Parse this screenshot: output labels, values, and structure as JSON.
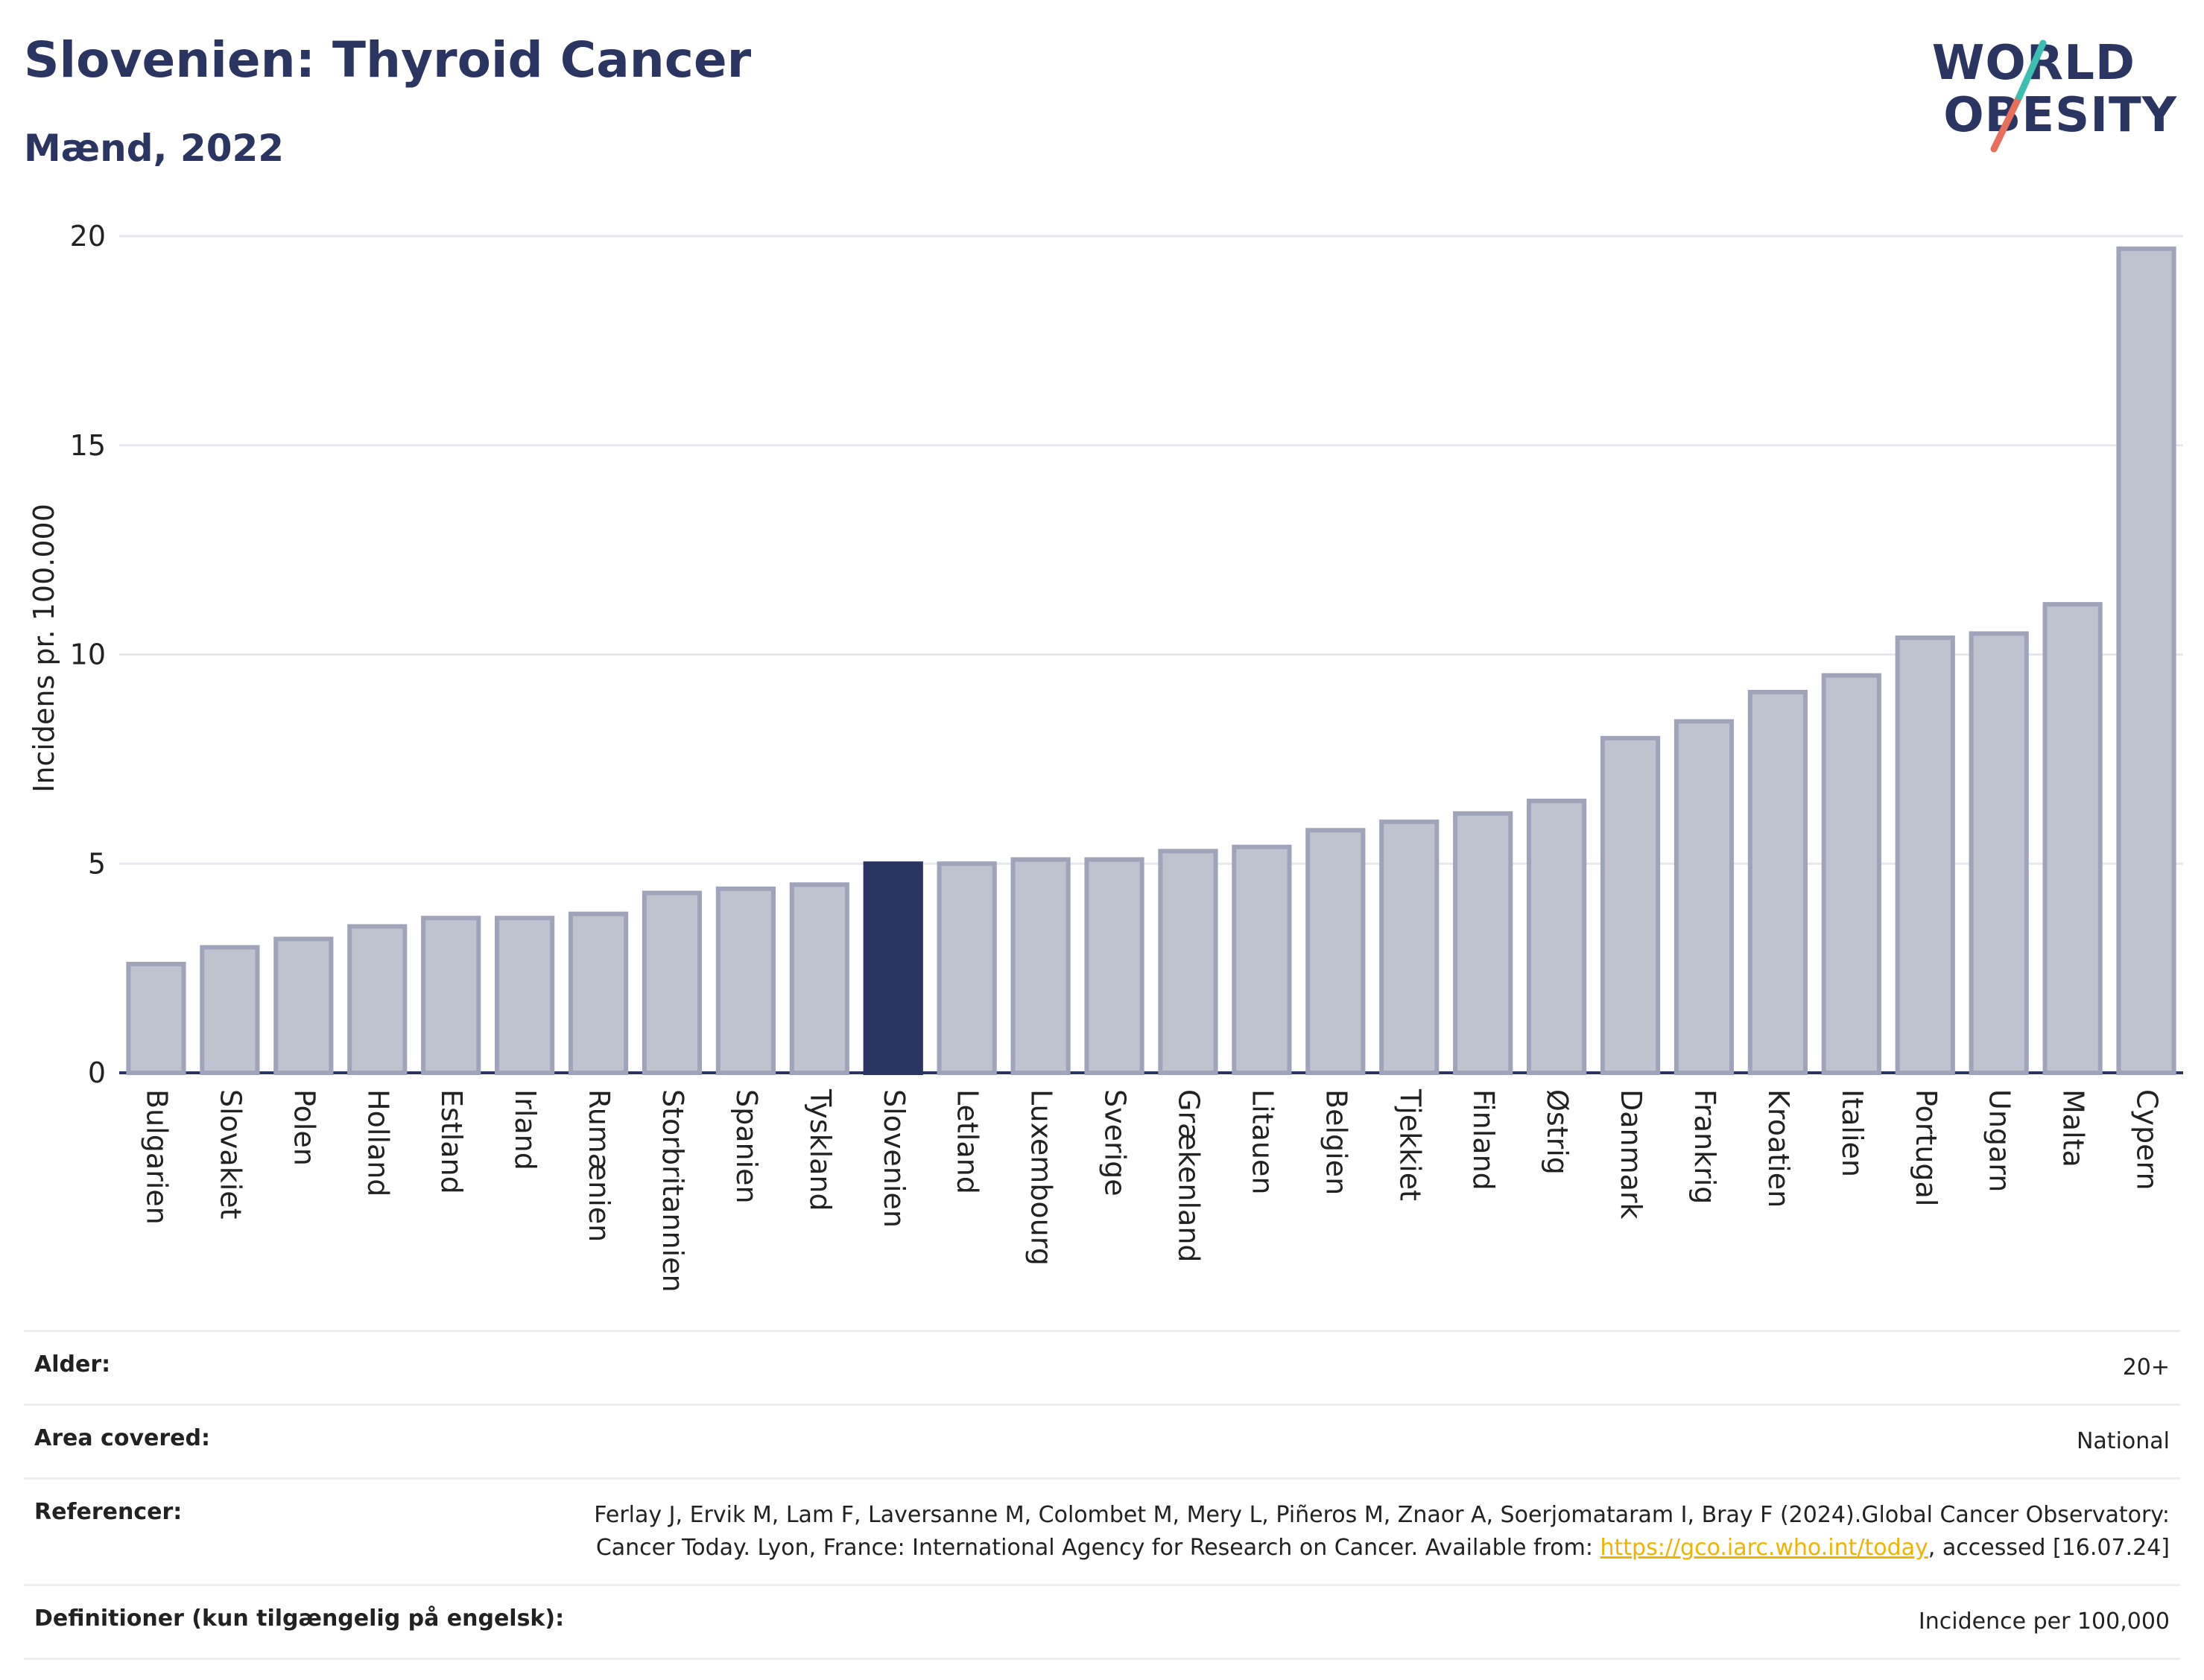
{
  "header": {
    "title": "Slovenien: Thyroid Cancer",
    "subtitle": "Mænd, 2022"
  },
  "logo": {
    "line1": "WORLD",
    "line2": "OBESITY"
  },
  "colors": {
    "accent": "#2b3561",
    "bar_default": "#bfc2cf",
    "bar_stroke": "#9fa4ba",
    "logo_teal": "#3cbfb0",
    "logo_coral": "#e8705b"
  },
  "chart_data": {
    "type": "bar",
    "title": "",
    "xlabel": "",
    "ylabel": "Incidens pr. 100.000",
    "ylim": [
      0,
      20
    ],
    "yticks": [
      0,
      5,
      10,
      15,
      20
    ],
    "grid": true,
    "highlight": "Slovenien",
    "categories": [
      "Bulgarien",
      "Slovakiet",
      "Polen",
      "Holland",
      "Estland",
      "Irland",
      "Rumænien",
      "Storbritannien",
      "Spanien",
      "Tyskland",
      "Slovenien",
      "Letland",
      "Luxembourg",
      "Sverige",
      "Grækenland",
      "Litauen",
      "Belgien",
      "Tjekkiet",
      "Finland",
      "Østrig",
      "Danmark",
      "Frankrig",
      "Kroatien",
      "Italien",
      "Portugal",
      "Ungarn",
      "Malta",
      "Cypern"
    ],
    "values": [
      2.6,
      3.0,
      3.2,
      3.5,
      3.7,
      3.7,
      3.8,
      4.3,
      4.4,
      4.5,
      5.0,
      5.0,
      5.1,
      5.1,
      5.3,
      5.4,
      5.8,
      6.0,
      6.2,
      6.5,
      8.0,
      8.4,
      9.1,
      9.5,
      10.4,
      10.5,
      11.2,
      19.7
    ]
  },
  "info": [
    {
      "key": "Alder:",
      "value": "20+"
    },
    {
      "key": "Area covered:",
      "value": "National"
    },
    {
      "key": "Referencer:",
      "value_pre": "Ferlay J, Ervik M, Lam F, Laversanne M, Colombet M, Mery L, Piñeros M, Znaor A, Soerjomataram I, Bray F (2024).Global Cancer Observatory: Cancer Today. Lyon, France: International Agency for Research on Cancer. Available from: ",
      "link": "https://gco.iarc.who.int/today",
      "value_post": ", accessed [16.07.24]"
    },
    {
      "key": "Definitioner (kun tilgængelig på engelsk):",
      "value": "Incidence per 100,000"
    }
  ]
}
